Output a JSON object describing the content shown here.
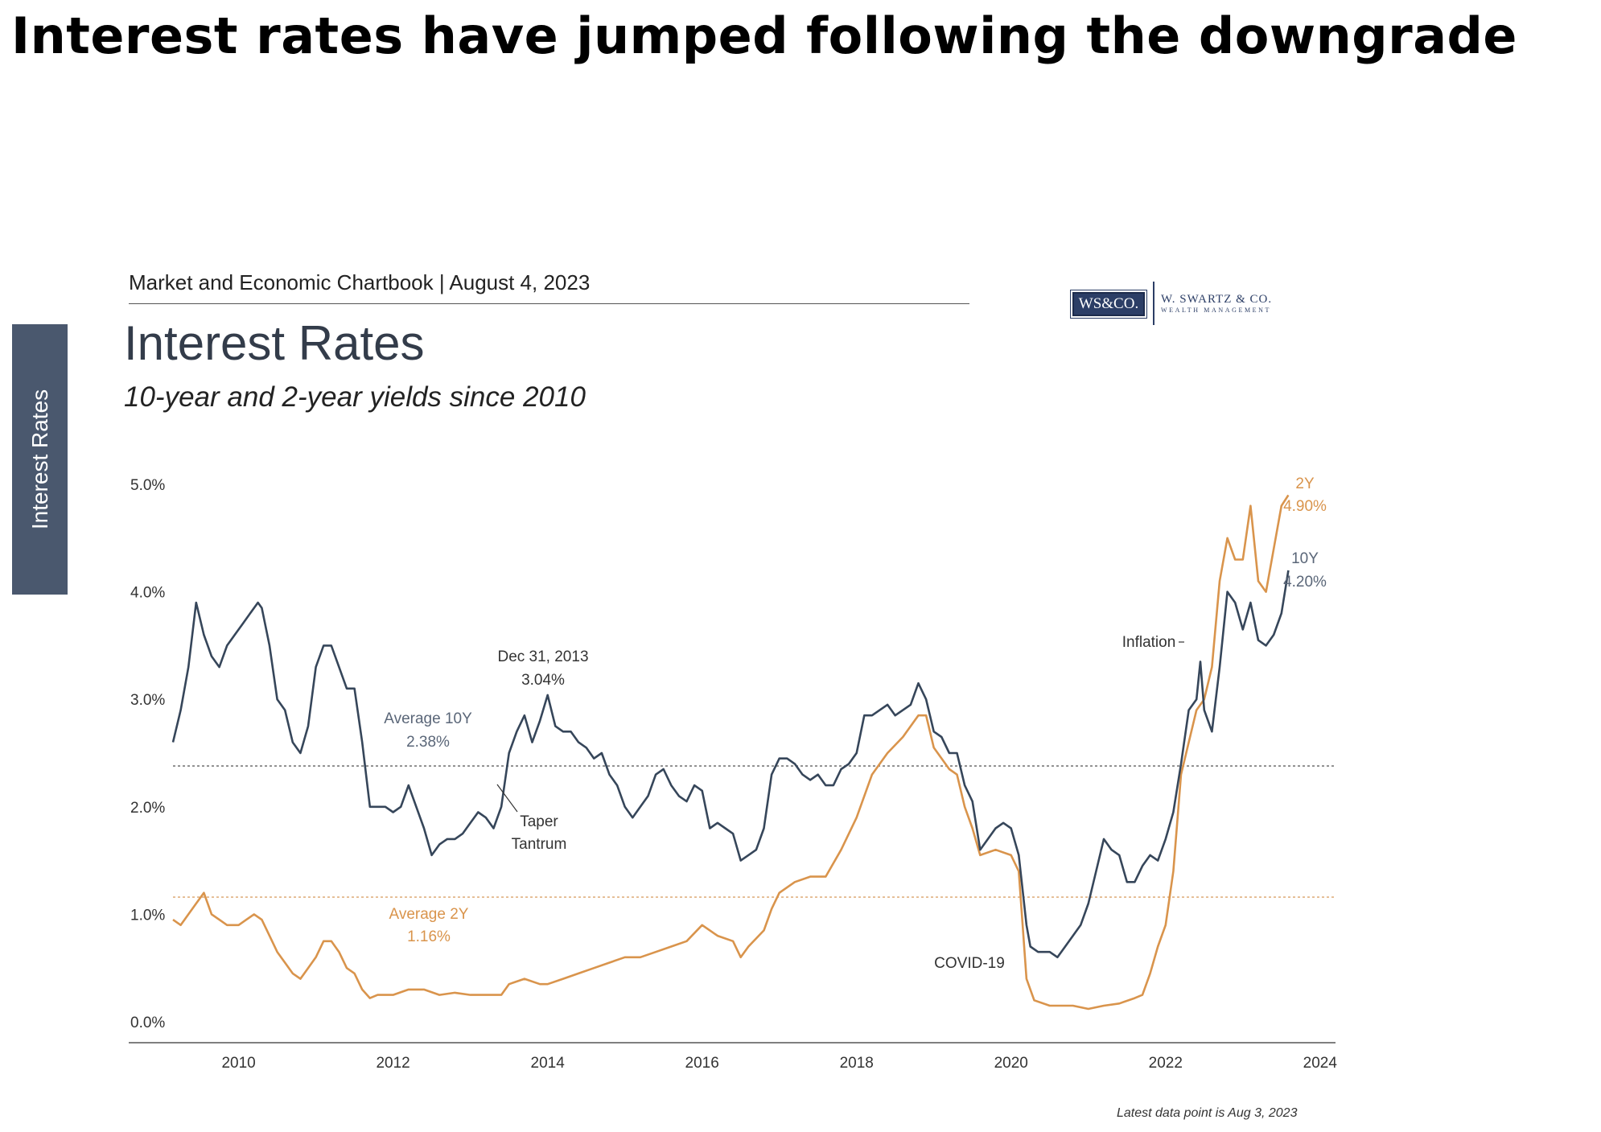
{
  "headline": "Interest rates have jumped following the downgrade",
  "side_tab": "Interest Rates",
  "header": {
    "chartbook": "Market and Economic Chartbook | August 4, 2023"
  },
  "logo": {
    "box_text": "WS&CO.",
    "name": "W. SWARTZ & CO.",
    "tagline": "WEALTH MANAGEMENT"
  },
  "footnote": "Latest data point is Aug 3, 2023",
  "colors": {
    "ten_year": "#36465a",
    "two_year": "#d9944c",
    "side_tab": "#4a586e"
  },
  "chart_data": {
    "type": "line",
    "title": "Interest Rates",
    "subtitle": "10-year and 2-year yields since 2010",
    "xlim": [
      2009.15,
      2024.2
    ],
    "ylim": [
      0,
      5
    ],
    "x_ticks": [
      2010,
      2012,
      2014,
      2016,
      2018,
      2020,
      2022,
      2024
    ],
    "x_tick_labels": [
      "2010",
      "2012",
      "2014",
      "2016",
      "2018",
      "2020",
      "2022",
      "2024"
    ],
    "y_ticks": [
      0,
      1,
      2,
      3,
      4,
      5
    ],
    "y_tick_labels": [
      "0.0%",
      "1.0%",
      "2.0%",
      "3.0%",
      "4.0%",
      "5.0%"
    ],
    "grid": false,
    "series": [
      {
        "name": "10Y",
        "color": "#36465a",
        "points": [
          [
            2009.15,
            2.6
          ],
          [
            2009.25,
            2.9
          ],
          [
            2009.35,
            3.3
          ],
          [
            2009.45,
            3.9
          ],
          [
            2009.55,
            3.6
          ],
          [
            2009.65,
            3.4
          ],
          [
            2009.75,
            3.3
          ],
          [
            2009.85,
            3.5
          ],
          [
            2009.95,
            3.6
          ],
          [
            2010.05,
            3.7
          ],
          [
            2010.15,
            3.8
          ],
          [
            2010.25,
            3.9
          ],
          [
            2010.3,
            3.85
          ],
          [
            2010.4,
            3.5
          ],
          [
            2010.5,
            3.0
          ],
          [
            2010.6,
            2.9
          ],
          [
            2010.7,
            2.6
          ],
          [
            2010.8,
            2.5
          ],
          [
            2010.9,
            2.75
          ],
          [
            2011.0,
            3.3
          ],
          [
            2011.1,
            3.5
          ],
          [
            2011.2,
            3.5
          ],
          [
            2011.3,
            3.3
          ],
          [
            2011.4,
            3.1
          ],
          [
            2011.5,
            3.1
          ],
          [
            2011.6,
            2.6
          ],
          [
            2011.65,
            2.3
          ],
          [
            2011.7,
            2.0
          ],
          [
            2011.8,
            2.0
          ],
          [
            2011.9,
            2.0
          ],
          [
            2012.0,
            1.95
          ],
          [
            2012.1,
            2.0
          ],
          [
            2012.2,
            2.2
          ],
          [
            2012.3,
            2.0
          ],
          [
            2012.4,
            1.8
          ],
          [
            2012.5,
            1.55
          ],
          [
            2012.6,
            1.65
          ],
          [
            2012.7,
            1.7
          ],
          [
            2012.8,
            1.7
          ],
          [
            2012.9,
            1.75
          ],
          [
            2013.0,
            1.85
          ],
          [
            2013.1,
            1.95
          ],
          [
            2013.2,
            1.9
          ],
          [
            2013.3,
            1.8
          ],
          [
            2013.4,
            2.0
          ],
          [
            2013.5,
            2.5
          ],
          [
            2013.6,
            2.7
          ],
          [
            2013.7,
            2.85
          ],
          [
            2013.8,
            2.6
          ],
          [
            2013.9,
            2.8
          ],
          [
            2014.0,
            3.04
          ],
          [
            2014.1,
            2.75
          ],
          [
            2014.2,
            2.7
          ],
          [
            2014.3,
            2.7
          ],
          [
            2014.4,
            2.6
          ],
          [
            2014.5,
            2.55
          ],
          [
            2014.6,
            2.45
          ],
          [
            2014.7,
            2.5
          ],
          [
            2014.8,
            2.3
          ],
          [
            2014.9,
            2.2
          ],
          [
            2015.0,
            2.0
          ],
          [
            2015.1,
            1.9
          ],
          [
            2015.2,
            2.0
          ],
          [
            2015.3,
            2.1
          ],
          [
            2015.4,
            2.3
          ],
          [
            2015.5,
            2.35
          ],
          [
            2015.6,
            2.2
          ],
          [
            2015.7,
            2.1
          ],
          [
            2015.8,
            2.05
          ],
          [
            2015.9,
            2.2
          ],
          [
            2016.0,
            2.15
          ],
          [
            2016.1,
            1.8
          ],
          [
            2016.2,
            1.85
          ],
          [
            2016.3,
            1.8
          ],
          [
            2016.4,
            1.75
          ],
          [
            2016.5,
            1.5
          ],
          [
            2016.6,
            1.55
          ],
          [
            2016.7,
            1.6
          ],
          [
            2016.8,
            1.8
          ],
          [
            2016.9,
            2.3
          ],
          [
            2017.0,
            2.45
          ],
          [
            2017.1,
            2.45
          ],
          [
            2017.2,
            2.4
          ],
          [
            2017.3,
            2.3
          ],
          [
            2017.4,
            2.25
          ],
          [
            2017.5,
            2.3
          ],
          [
            2017.6,
            2.2
          ],
          [
            2017.7,
            2.2
          ],
          [
            2017.8,
            2.35
          ],
          [
            2017.9,
            2.4
          ],
          [
            2018.0,
            2.5
          ],
          [
            2018.1,
            2.85
          ],
          [
            2018.2,
            2.85
          ],
          [
            2018.3,
            2.9
          ],
          [
            2018.4,
            2.95
          ],
          [
            2018.5,
            2.85
          ],
          [
            2018.6,
            2.9
          ],
          [
            2018.7,
            2.95
          ],
          [
            2018.8,
            3.15
          ],
          [
            2018.9,
            3.0
          ],
          [
            2019.0,
            2.7
          ],
          [
            2019.1,
            2.65
          ],
          [
            2019.2,
            2.5
          ],
          [
            2019.3,
            2.5
          ],
          [
            2019.4,
            2.2
          ],
          [
            2019.5,
            2.05
          ],
          [
            2019.6,
            1.6
          ],
          [
            2019.7,
            1.7
          ],
          [
            2019.8,
            1.8
          ],
          [
            2019.9,
            1.85
          ],
          [
            2020.0,
            1.8
          ],
          [
            2020.1,
            1.55
          ],
          [
            2020.2,
            0.9
          ],
          [
            2020.25,
            0.7
          ],
          [
            2020.35,
            0.65
          ],
          [
            2020.5,
            0.65
          ],
          [
            2020.6,
            0.6
          ],
          [
            2020.7,
            0.7
          ],
          [
            2020.8,
            0.8
          ],
          [
            2020.9,
            0.9
          ],
          [
            2021.0,
            1.1
          ],
          [
            2021.1,
            1.4
          ],
          [
            2021.2,
            1.7
          ],
          [
            2021.3,
            1.6
          ],
          [
            2021.4,
            1.55
          ],
          [
            2021.5,
            1.3
          ],
          [
            2021.6,
            1.3
          ],
          [
            2021.7,
            1.45
          ],
          [
            2021.8,
            1.55
          ],
          [
            2021.9,
            1.5
          ],
          [
            2022.0,
            1.7
          ],
          [
            2022.1,
            1.95
          ],
          [
            2022.2,
            2.4
          ],
          [
            2022.3,
            2.9
          ],
          [
            2022.4,
            3.0
          ],
          [
            2022.45,
            3.35
          ],
          [
            2022.5,
            2.9
          ],
          [
            2022.6,
            2.7
          ],
          [
            2022.7,
            3.3
          ],
          [
            2022.8,
            4.0
          ],
          [
            2022.9,
            3.9
          ],
          [
            2023.0,
            3.65
          ],
          [
            2023.1,
            3.9
          ],
          [
            2023.2,
            3.55
          ],
          [
            2023.3,
            3.5
          ],
          [
            2023.4,
            3.6
          ],
          [
            2023.5,
            3.8
          ],
          [
            2023.59,
            4.2
          ]
        ]
      },
      {
        "name": "2Y",
        "color": "#d9944c",
        "points": [
          [
            2009.15,
            0.95
          ],
          [
            2009.25,
            0.9
          ],
          [
            2009.35,
            1.0
          ],
          [
            2009.45,
            1.1
          ],
          [
            2009.55,
            1.2
          ],
          [
            2009.65,
            1.0
          ],
          [
            2009.75,
            0.95
          ],
          [
            2009.85,
            0.9
          ],
          [
            2010.0,
            0.9
          ],
          [
            2010.1,
            0.95
          ],
          [
            2010.2,
            1.0
          ],
          [
            2010.3,
            0.95
          ],
          [
            2010.4,
            0.8
          ],
          [
            2010.5,
            0.65
          ],
          [
            2010.6,
            0.55
          ],
          [
            2010.7,
            0.45
          ],
          [
            2010.8,
            0.4
          ],
          [
            2010.9,
            0.5
          ],
          [
            2011.0,
            0.6
          ],
          [
            2011.1,
            0.75
          ],
          [
            2011.2,
            0.75
          ],
          [
            2011.3,
            0.65
          ],
          [
            2011.4,
            0.5
          ],
          [
            2011.5,
            0.45
          ],
          [
            2011.6,
            0.3
          ],
          [
            2011.7,
            0.22
          ],
          [
            2011.8,
            0.25
          ],
          [
            2011.9,
            0.25
          ],
          [
            2012.0,
            0.25
          ],
          [
            2012.2,
            0.3
          ],
          [
            2012.4,
            0.3
          ],
          [
            2012.6,
            0.25
          ],
          [
            2012.8,
            0.27
          ],
          [
            2013.0,
            0.25
          ],
          [
            2013.2,
            0.25
          ],
          [
            2013.4,
            0.25
          ],
          [
            2013.5,
            0.35
          ],
          [
            2013.7,
            0.4
          ],
          [
            2013.9,
            0.35
          ],
          [
            2014.0,
            0.35
          ],
          [
            2014.2,
            0.4
          ],
          [
            2014.4,
            0.45
          ],
          [
            2014.6,
            0.5
          ],
          [
            2014.8,
            0.55
          ],
          [
            2015.0,
            0.6
          ],
          [
            2015.2,
            0.6
          ],
          [
            2015.4,
            0.65
          ],
          [
            2015.6,
            0.7
          ],
          [
            2015.8,
            0.75
          ],
          [
            2016.0,
            0.9
          ],
          [
            2016.1,
            0.85
          ],
          [
            2016.2,
            0.8
          ],
          [
            2016.4,
            0.75
          ],
          [
            2016.5,
            0.6
          ],
          [
            2016.6,
            0.7
          ],
          [
            2016.8,
            0.85
          ],
          [
            2016.9,
            1.05
          ],
          [
            2017.0,
            1.2
          ],
          [
            2017.2,
            1.3
          ],
          [
            2017.4,
            1.35
          ],
          [
            2017.6,
            1.35
          ],
          [
            2017.8,
            1.6
          ],
          [
            2017.9,
            1.75
          ],
          [
            2018.0,
            1.9
          ],
          [
            2018.2,
            2.3
          ],
          [
            2018.4,
            2.5
          ],
          [
            2018.6,
            2.65
          ],
          [
            2018.8,
            2.85
          ],
          [
            2018.9,
            2.85
          ],
          [
            2019.0,
            2.55
          ],
          [
            2019.2,
            2.35
          ],
          [
            2019.3,
            2.3
          ],
          [
            2019.4,
            2.0
          ],
          [
            2019.5,
            1.8
          ],
          [
            2019.6,
            1.55
          ],
          [
            2019.8,
            1.6
          ],
          [
            2020.0,
            1.55
          ],
          [
            2020.1,
            1.4
          ],
          [
            2020.2,
            0.4
          ],
          [
            2020.3,
            0.2
          ],
          [
            2020.5,
            0.15
          ],
          [
            2020.8,
            0.15
          ],
          [
            2021.0,
            0.12
          ],
          [
            2021.2,
            0.15
          ],
          [
            2021.4,
            0.17
          ],
          [
            2021.6,
            0.22
          ],
          [
            2021.7,
            0.25
          ],
          [
            2021.8,
            0.45
          ],
          [
            2021.9,
            0.7
          ],
          [
            2022.0,
            0.9
          ],
          [
            2022.1,
            1.4
          ],
          [
            2022.2,
            2.3
          ],
          [
            2022.3,
            2.6
          ],
          [
            2022.4,
            2.9
          ],
          [
            2022.5,
            3.0
          ],
          [
            2022.6,
            3.3
          ],
          [
            2022.7,
            4.1
          ],
          [
            2022.8,
            4.5
          ],
          [
            2022.9,
            4.3
          ],
          [
            2023.0,
            4.3
          ],
          [
            2023.1,
            4.8
          ],
          [
            2023.2,
            4.1
          ],
          [
            2023.3,
            4.0
          ],
          [
            2023.4,
            4.4
          ],
          [
            2023.5,
            4.8
          ],
          [
            2023.59,
            4.9
          ]
        ]
      }
    ],
    "reference_lines": [
      {
        "name": "Average 10Y",
        "y": 2.38,
        "color": "#7a7a7a"
      },
      {
        "name": "Average 2Y",
        "y": 1.16,
        "color": "#e0b080"
      }
    ],
    "annotations": {
      "avg10_title": "Average 10Y",
      "avg10_value": "2.38%",
      "avg2_title": "Average 2Y",
      "avg2_value": "1.16%",
      "dec_title": "Dec 31, 2013",
      "dec_value": "3.04%",
      "taper_1": "Taper",
      "taper_2": "Tantrum",
      "covid": "COVID-19",
      "inflation": "Inflation",
      "end2_title": "2Y",
      "end2_value": "4.90%",
      "end10_title": "10Y",
      "end10_value": "4.20%"
    }
  }
}
